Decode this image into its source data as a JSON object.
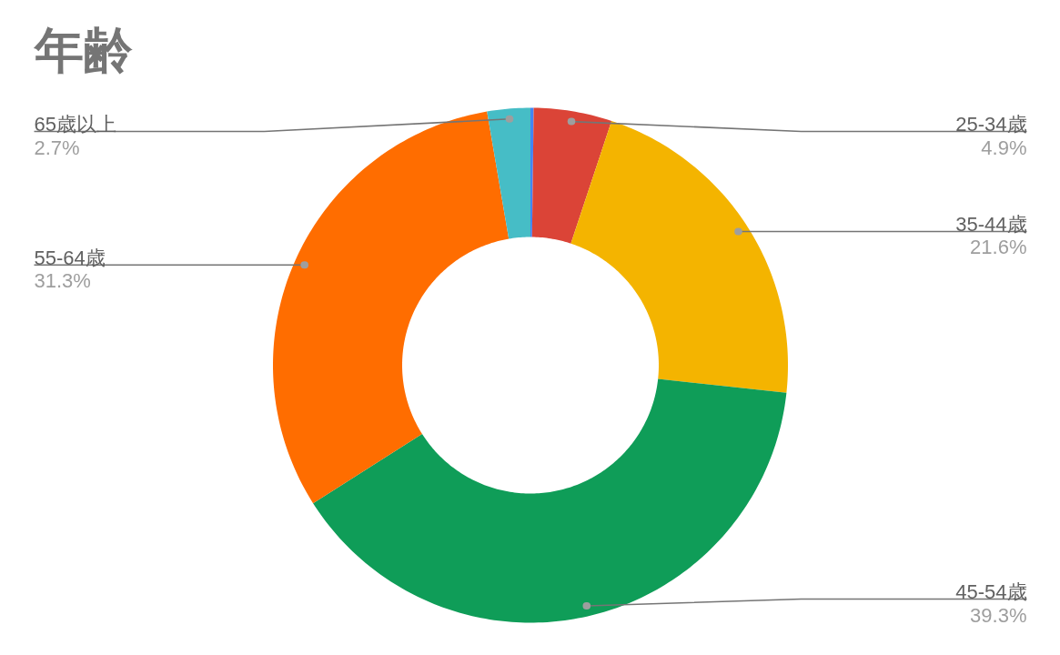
{
  "chart_data": {
    "type": "donut",
    "title": "年齢",
    "categories": [
      null,
      "25-34歳",
      "35-44歳",
      "45-54歳",
      "55-64歳",
      "65歳以上"
    ],
    "values": [
      0.2,
      4.9,
      21.6,
      39.3,
      31.3,
      2.7
    ],
    "colors": [
      "#4285f4",
      "#db4437",
      "#f4b400",
      "#0f9d58",
      "#ff6d00",
      "#46bdc6"
    ],
    "value_labels": [
      null,
      "4.9%",
      "21.6%",
      "39.3%",
      "31.3%",
      "2.7%"
    ]
  }
}
